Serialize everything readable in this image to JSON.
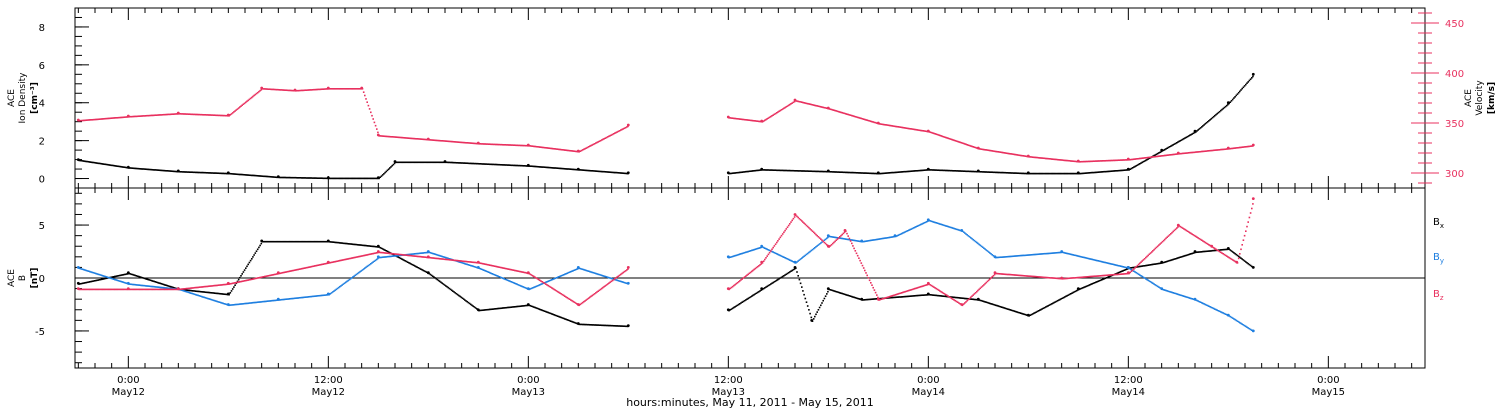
{
  "colors": {
    "black": "#000000",
    "red": "#e8315f",
    "blue": "#1f7fe0"
  },
  "chart_data": [
    {
      "type": "scatter",
      "panel": "top",
      "title": "",
      "x_axis": {
        "label": "hours:minutes, May 11, 2011 - May 15, 2011",
        "tick_hours": [
          0,
          12,
          24,
          36,
          48,
          60,
          72
        ],
        "tick_labels": [
          [
            "0:00",
            "May12"
          ],
          [
            "12:00",
            "May12"
          ],
          [
            "0:00",
            "May13"
          ],
          [
            "12:00",
            "May13"
          ],
          [
            "0:00",
            "May14"
          ],
          [
            "12:00",
            "May14"
          ],
          [
            "0:00",
            "May15"
          ]
        ],
        "range_hours": [
          -3.2,
          77.8
        ],
        "units_note": "hours relative to 2011-05-12 00:00 UT"
      },
      "left_axis": {
        "label_lines": [
          "ACE",
          "Ion Density"
        ],
        "unit": "[cm⁻³]",
        "ylim": [
          -0.5,
          9
        ],
        "ticks": [
          0,
          2,
          4,
          6,
          8
        ]
      },
      "right_axis": {
        "label_lines": [
          "ACE",
          "Velocity"
        ],
        "unit": "[km/s]",
        "ylim": [
          285,
          465
        ],
        "ticks": [
          300,
          350,
          400,
          450
        ],
        "color": "#e8315f"
      },
      "series": [
        {
          "name": "Ion Density",
          "axis": "left",
          "color": "#000000",
          "x": [
            -3,
            0,
            3,
            6,
            9,
            12,
            15,
            16,
            19,
            24,
            27,
            30,
            33,
            36,
            38,
            42,
            45,
            48,
            51,
            54,
            57,
            60,
            62,
            64,
            66,
            67.5
          ],
          "y": [
            1.0,
            0.6,
            0.4,
            0.3,
            0.1,
            0.05,
            0.05,
            0.9,
            0.9,
            0.7,
            0.5,
            0.3,
            null,
            0.3,
            0.5,
            0.4,
            0.3,
            0.5,
            0.4,
            0.3,
            0.3,
            0.5,
            1.5,
            2.5,
            4.0,
            5.5
          ]
        },
        {
          "name": "Velocity",
          "axis": "right",
          "color": "#e8315f",
          "x": [
            -3,
            0,
            3,
            6,
            8,
            10,
            12,
            14,
            15,
            18,
            21,
            24,
            27,
            30,
            33,
            36,
            38,
            40,
            42,
            45,
            48,
            51,
            54,
            57,
            60,
            63,
            66,
            67.5
          ],
          "y": [
            353,
            357,
            360,
            358,
            385,
            383,
            385,
            385,
            338,
            334,
            330,
            328,
            322,
            348,
            null,
            356,
            352,
            373,
            365,
            350,
            342,
            325,
            317,
            312,
            314,
            320,
            325,
            328
          ]
        }
      ]
    },
    {
      "type": "scatter",
      "panel": "bottom",
      "title": "",
      "left_axis": {
        "label_lines": [
          "ACE",
          "B"
        ],
        "unit": "[nT]",
        "ylim": [
          -8.5,
          8.5
        ],
        "ticks": [
          -5,
          0,
          5
        ]
      },
      "legend": {
        "placement": "right",
        "entries": [
          [
            "B",
            "x"
          ],
          [
            "B",
            "y"
          ],
          [
            "B",
            "z"
          ]
        ]
      },
      "series": [
        {
          "name": "Bx",
          "color": "#000000",
          "x": [
            -3,
            0,
            3,
            6,
            8,
            12,
            15,
            18,
            21,
            24,
            27,
            30,
            33,
            36,
            38,
            40,
            41,
            42,
            44,
            48,
            51,
            54,
            57,
            60,
            62,
            64,
            66,
            67.5
          ],
          "y": [
            -0.5,
            0.5,
            -1.0,
            -1.5,
            3.5,
            3.5,
            3.0,
            0.5,
            -3.0,
            -2.5,
            -4.3,
            -4.5,
            null,
            -3.0,
            -1.0,
            1.0,
            -4.0,
            -1.0,
            -2.0,
            -1.5,
            -2.0,
            -3.5,
            -1.0,
            1.0,
            1.5,
            2.5,
            2.8,
            1.0
          ]
        },
        {
          "name": "By",
          "color": "#1f7fe0",
          "x": [
            -3,
            0,
            3,
            6,
            9,
            12,
            15,
            18,
            21,
            24,
            27,
            30,
            33,
            36,
            38,
            40,
            42,
            44,
            46,
            48,
            50,
            52,
            56,
            60,
            62,
            64,
            66,
            67.5
          ],
          "y": [
            1.0,
            -0.5,
            -1.0,
            -2.5,
            -2.0,
            -1.5,
            2.0,
            2.5,
            1.0,
            -1.0,
            1.0,
            -0.5,
            null,
            2.0,
            3.0,
            1.5,
            4.0,
            3.5,
            4.0,
            5.5,
            4.5,
            2.0,
            2.5,
            1.0,
            -1.0,
            -2.0,
            -3.5,
            -5.0
          ]
        },
        {
          "name": "Bz",
          "color": "#e8315f",
          "x": [
            -3,
            0,
            3,
            6,
            9,
            12,
            15,
            18,
            21,
            24,
            27,
            30,
            33,
            36,
            38,
            40,
            42,
            43,
            45,
            48,
            50,
            52,
            56,
            60,
            63,
            65,
            66.5,
            67.5
          ],
          "y": [
            -1.0,
            -1.0,
            -1.0,
            -0.5,
            0.5,
            1.5,
            2.5,
            2.0,
            1.5,
            0.5,
            -2.5,
            1.0,
            null,
            -1.0,
            1.5,
            6.0,
            3.0,
            4.5,
            -2.0,
            -0.5,
            -2.5,
            0.5,
            0.0,
            0.5,
            5.0,
            3.0,
            1.5,
            7.5
          ]
        }
      ]
    }
  ]
}
